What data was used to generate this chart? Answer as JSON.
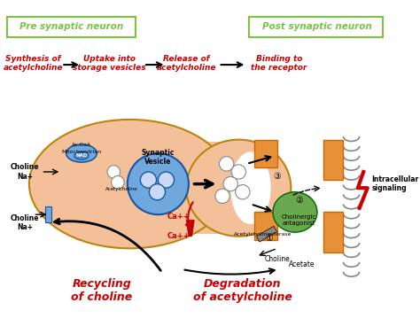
{
  "bg_color": "#ffffff",
  "neuron_color": "#f4c09a",
  "pre_label": "Pre synaptic neuron",
  "post_label": "Post synaptic neuron",
  "label_box_color": "#7dc242",
  "label_text_color": "#7dc242",
  "step1": "Synthesis of\nacetylcholine",
  "step2": "Uptake into\nstorage vesicles",
  "step3": "Release of\nacetylcholine",
  "step4": "Binding to\nthe receptor",
  "step_color": "#cc0000",
  "recycling_text": "Recycling\nof choline",
  "degradation_text": "Degradation\nof acetylcholine",
  "bottom_text_color": "#cc0000",
  "vesicle_color": "#6fa8dc",
  "vesicle_fill": "#c9daf8",
  "ca_color": "#cc0000",
  "orange_receptor": "#e69138",
  "intracellular_text": "Intracellular\nsignaling",
  "lightning_color": "#cc0000",
  "cholinergic_text": "Cholinergic\nantagonist",
  "cholinergic_color": "#6aa84f",
  "acetylcholinesterase_text": "Acetylcholinesterase",
  "choline_text": "Choline",
  "acetate_text": "Acetate",
  "choline_na_text": "Choline\nNa+",
  "mitochondrion_text": "Mitochondrion",
  "accoA_text": "Ac.CoA",
  "synaptic_vesicle_text": "Synaptic\nVesicle",
  "acetylcholine_text": "Acetylcholine"
}
